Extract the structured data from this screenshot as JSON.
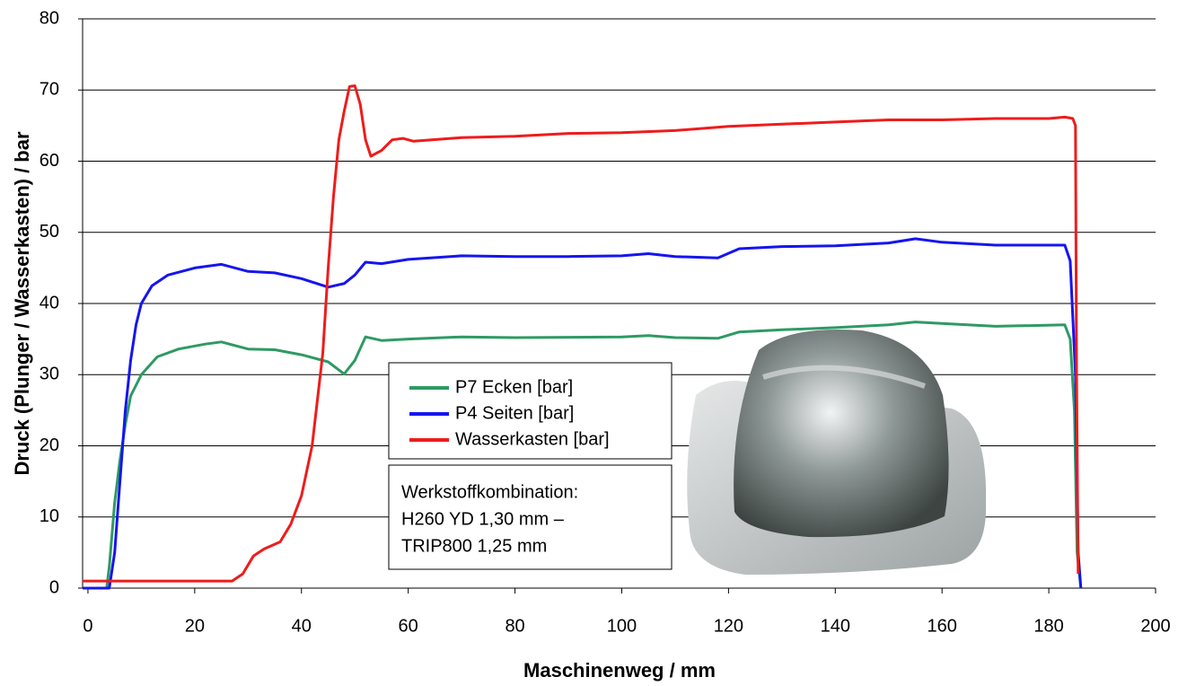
{
  "chart_data": {
    "type": "line",
    "xlabel": "Maschinenweg / mm",
    "ylabel": "Druck (Plunger / Wasserkasten) / bar",
    "xlim": [
      -1,
      200
    ],
    "ylim": [
      0,
      80
    ],
    "xticks": [
      0,
      20,
      40,
      60,
      80,
      100,
      120,
      140,
      160,
      180,
      200
    ],
    "yticks": [
      0,
      10,
      20,
      30,
      40,
      50,
      60,
      70,
      80
    ],
    "grid": true,
    "annotation": [
      "Werkstoffkombination:",
      "H260 YD 1,30 mm –",
      "TRIP800 1,25 mm"
    ],
    "series": [
      {
        "name": "P7 Ecken [bar]",
        "color": "#2e9a63",
        "x": [
          -1,
          3.5,
          4,
          5,
          6,
          7,
          8,
          10,
          13,
          17,
          22,
          25,
          30,
          35,
          40,
          45,
          48,
          50,
          52,
          55,
          60,
          70,
          80,
          100,
          105,
          110,
          118,
          122,
          130,
          140,
          150,
          155,
          160,
          170,
          183,
          184,
          184.8,
          185.3,
          186
        ],
        "values": [
          0,
          0,
          3,
          12,
          18,
          23,
          27,
          30,
          32.5,
          33.6,
          34.3,
          34.6,
          33.6,
          33.5,
          32.8,
          31.8,
          30.1,
          32,
          35.3,
          34.8,
          35,
          35.3,
          35.2,
          35.3,
          35.5,
          35.2,
          35.1,
          36,
          36.3,
          36.6,
          37,
          37.4,
          37.2,
          36.8,
          37,
          35,
          25,
          5,
          0
        ]
      },
      {
        "name": "P4 Seiten [bar]",
        "color": "#1515f0",
        "x": [
          -1,
          4,
          5,
          6,
          7,
          8,
          9,
          10,
          12,
          15,
          20,
          25,
          30,
          35,
          40,
          45,
          48,
          50,
          52,
          55,
          60,
          70,
          80,
          90,
          100,
          105,
          110,
          118,
          122,
          130,
          140,
          150,
          155,
          160,
          170,
          183,
          184,
          185,
          185.5,
          186
        ],
        "values": [
          0,
          0,
          5,
          15,
          25,
          32,
          37,
          40,
          42.5,
          44,
          45,
          45.5,
          44.5,
          44.3,
          43.5,
          42.3,
          42.8,
          44,
          45.8,
          45.6,
          46.2,
          46.7,
          46.6,
          46.6,
          46.7,
          47,
          46.6,
          46.4,
          47.7,
          48,
          48.1,
          48.5,
          49.1,
          48.6,
          48.2,
          48.2,
          46,
          30,
          5,
          0
        ]
      },
      {
        "name": "Wasserkasten [bar]",
        "color": "#ee1c1c",
        "x": [
          -1,
          27,
          29,
          31,
          33,
          36,
          38,
          40,
          42,
          44,
          45,
          46,
          47,
          48,
          49,
          50,
          51,
          52,
          53,
          55,
          57,
          59,
          61,
          70,
          80,
          90,
          100,
          110,
          120,
          130,
          140,
          150,
          160,
          170,
          180,
          183,
          184.5,
          185,
          185.2,
          185.5
        ],
        "values": [
          1,
          1,
          2,
          4.5,
          5.5,
          6.5,
          9,
          13,
          20,
          33,
          45,
          55,
          63,
          67,
          70.5,
          70.6,
          68,
          63,
          60.7,
          61.5,
          63,
          63.2,
          62.8,
          63.3,
          63.5,
          63.9,
          64,
          64.3,
          64.9,
          65.2,
          65.5,
          65.8,
          65.8,
          66,
          66,
          66.2,
          66,
          65,
          30,
          2
        ]
      }
    ]
  }
}
